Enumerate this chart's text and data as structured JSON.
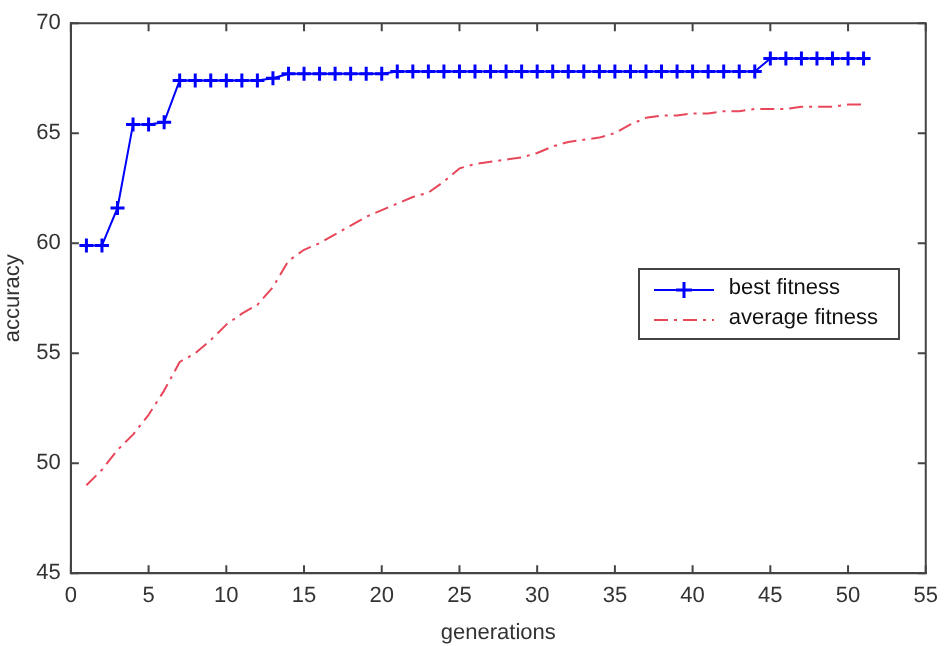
{
  "chart_data": {
    "type": "line",
    "xlabel": "generations",
    "ylabel": "accuracy",
    "xlim": [
      0,
      55
    ],
    "xticks": [
      0,
      5,
      10,
      15,
      20,
      25,
      30,
      35,
      40,
      45,
      50,
      55
    ],
    "ylim": [
      45,
      70
    ],
    "yticks": [
      45,
      50,
      55,
      60,
      65,
      70
    ],
    "grid": false,
    "legend": "right",
    "x": [
      1,
      2,
      3,
      4,
      5,
      6,
      7,
      8,
      9,
      10,
      11,
      12,
      13,
      14,
      15,
      16,
      17,
      18,
      19,
      20,
      21,
      22,
      23,
      24,
      25,
      26,
      27,
      28,
      29,
      30,
      31,
      32,
      33,
      34,
      35,
      36,
      37,
      38,
      39,
      40,
      41,
      42,
      43,
      44,
      45,
      46,
      47,
      48,
      49,
      50,
      51
    ],
    "series": [
      {
        "name": "best fitness",
        "color": "#0000ff",
        "marker": "cross",
        "line_style": "solid",
        "values": [
          59.9,
          59.9,
          61.6,
          65.4,
          65.4,
          65.5,
          67.4,
          67.4,
          67.4,
          67.4,
          67.4,
          67.4,
          67.5,
          67.7,
          67.7,
          67.7,
          67.7,
          67.7,
          67.7,
          67.7,
          67.8,
          67.8,
          67.8,
          67.8,
          67.8,
          67.8,
          67.8,
          67.8,
          67.8,
          67.8,
          67.8,
          67.8,
          67.8,
          67.8,
          67.8,
          67.8,
          67.8,
          67.8,
          67.8,
          67.8,
          67.8,
          67.8,
          67.8,
          67.8,
          68.4,
          68.4,
          68.4,
          68.4,
          68.4,
          68.4,
          68.4
        ]
      },
      {
        "name": "average fitness",
        "color": "#e8475a",
        "marker": "none",
        "line_style": "dashed",
        "values": [
          49.0,
          49.7,
          50.6,
          51.3,
          52.2,
          53.3,
          54.6,
          55.0,
          55.6,
          56.3,
          56.8,
          57.2,
          58.0,
          59.2,
          59.7,
          60.0,
          60.4,
          60.8,
          61.2,
          61.5,
          61.8,
          62.1,
          62.3,
          62.8,
          63.4,
          63.6,
          63.7,
          63.8,
          63.9,
          64.1,
          64.4,
          64.6,
          64.7,
          64.8,
          65.0,
          65.4,
          65.7,
          65.8,
          65.8,
          65.9,
          65.9,
          66.0,
          66.0,
          66.1,
          66.1,
          66.1,
          66.2,
          66.2,
          66.2,
          66.3,
          66.3
        ]
      }
    ]
  }
}
